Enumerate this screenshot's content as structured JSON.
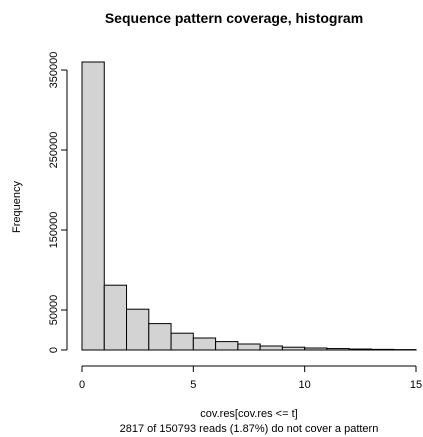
{
  "chart_data": {
    "type": "bar",
    "title": "Sequence pattern coverage, histogram",
    "xlabel": "cov.res[cov.res <= t]",
    "subtitle": "2817 of 150793 reads (1.87%) do not cover a pattern",
    "ylabel": "Frequency",
    "bins": [
      {
        "start": 0,
        "end": 1,
        "value": 360000
      },
      {
        "start": 1,
        "end": 2,
        "value": 81000
      },
      {
        "start": 2,
        "end": 3,
        "value": 51000
      },
      {
        "start": 3,
        "end": 4,
        "value": 33000
      },
      {
        "start": 4,
        "end": 5,
        "value": 21000
      },
      {
        "start": 5,
        "end": 6,
        "value": 15000
      },
      {
        "start": 6,
        "end": 7,
        "value": 10500
      },
      {
        "start": 7,
        "end": 8,
        "value": 7500
      },
      {
        "start": 8,
        "end": 9,
        "value": 5000
      },
      {
        "start": 9,
        "end": 10,
        "value": 3500
      },
      {
        "start": 10,
        "end": 11,
        "value": 2500
      },
      {
        "start": 11,
        "end": 12,
        "value": 1800
      },
      {
        "start": 12,
        "end": 13,
        "value": 1200
      },
      {
        "start": 13,
        "end": 14,
        "value": 800
      },
      {
        "start": 14,
        "end": 15,
        "value": 500
      }
    ],
    "xlim": [
      0,
      15
    ],
    "ylim": [
      0,
      365000
    ],
    "xticks": [
      0,
      5,
      10,
      15
    ],
    "yticks": [
      0,
      50000,
      150000,
      250000,
      350000
    ],
    "bar_fill": "#d3d3d3",
    "bar_stroke": "#000000",
    "grid": false,
    "legend": "none"
  }
}
